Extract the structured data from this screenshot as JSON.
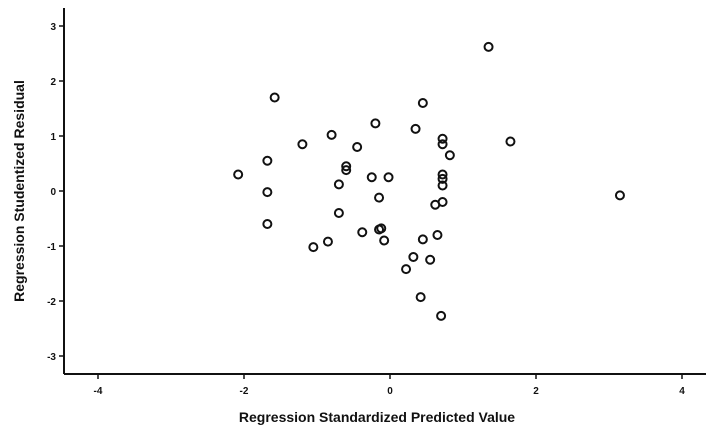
{
  "chart_data": {
    "type": "scatter",
    "title": "",
    "xlabel": "Regression Standardized Predicted Value",
    "ylabel": "Regression Studentized Residual",
    "xlim": [
      -4.4,
      4.4
    ],
    "ylim": [
      -3.3,
      3.3
    ],
    "xticks": [
      -4,
      -2,
      0,
      2,
      4
    ],
    "yticks": [
      -3,
      -2,
      -1,
      0,
      1,
      2,
      3
    ],
    "grid": false,
    "legend": "none",
    "marker": "open-circle",
    "color": "#111111",
    "points": [
      {
        "x": -2.08,
        "y": 0.3
      },
      {
        "x": -1.68,
        "y": 0.55
      },
      {
        "x": -1.68,
        "y": -0.02
      },
      {
        "x": -1.68,
        "y": -0.6
      },
      {
        "x": -1.58,
        "y": 1.7
      },
      {
        "x": -1.2,
        "y": 0.85
      },
      {
        "x": -1.05,
        "y": -1.02
      },
      {
        "x": -0.85,
        "y": -0.92
      },
      {
        "x": -0.8,
        "y": 1.02
      },
      {
        "x": -0.7,
        "y": 0.12
      },
      {
        "x": -0.7,
        "y": -0.4
      },
      {
        "x": -0.6,
        "y": 0.45
      },
      {
        "x": -0.6,
        "y": 0.38
      },
      {
        "x": -0.45,
        "y": 0.8
      },
      {
        "x": -0.38,
        "y": -0.75
      },
      {
        "x": -0.25,
        "y": 0.25
      },
      {
        "x": -0.2,
        "y": 1.23
      },
      {
        "x": -0.15,
        "y": -0.12
      },
      {
        "x": -0.15,
        "y": -0.7
      },
      {
        "x": -0.12,
        "y": -0.68
      },
      {
        "x": -0.08,
        "y": -0.9
      },
      {
        "x": -0.02,
        "y": 0.25
      },
      {
        "x": 0.22,
        "y": -1.42
      },
      {
        "x": 0.32,
        "y": -1.2
      },
      {
        "x": 0.35,
        "y": 1.13
      },
      {
        "x": 0.42,
        "y": -1.93
      },
      {
        "x": 0.45,
        "y": 1.6
      },
      {
        "x": 0.45,
        "y": -0.88
      },
      {
        "x": 0.55,
        "y": -1.25
      },
      {
        "x": 0.62,
        "y": -0.25
      },
      {
        "x": 0.65,
        "y": -0.8
      },
      {
        "x": 0.7,
        "y": -2.27
      },
      {
        "x": 0.72,
        "y": 0.95
      },
      {
        "x": 0.72,
        "y": 0.85
      },
      {
        "x": 0.72,
        "y": 0.3
      },
      {
        "x": 0.72,
        "y": 0.22
      },
      {
        "x": 0.72,
        "y": 0.1
      },
      {
        "x": 0.72,
        "y": -0.2
      },
      {
        "x": 0.82,
        "y": 0.65
      },
      {
        "x": 1.35,
        "y": 2.62
      },
      {
        "x": 1.65,
        "y": 0.9
      },
      {
        "x": 3.15,
        "y": -0.08
      }
    ]
  }
}
